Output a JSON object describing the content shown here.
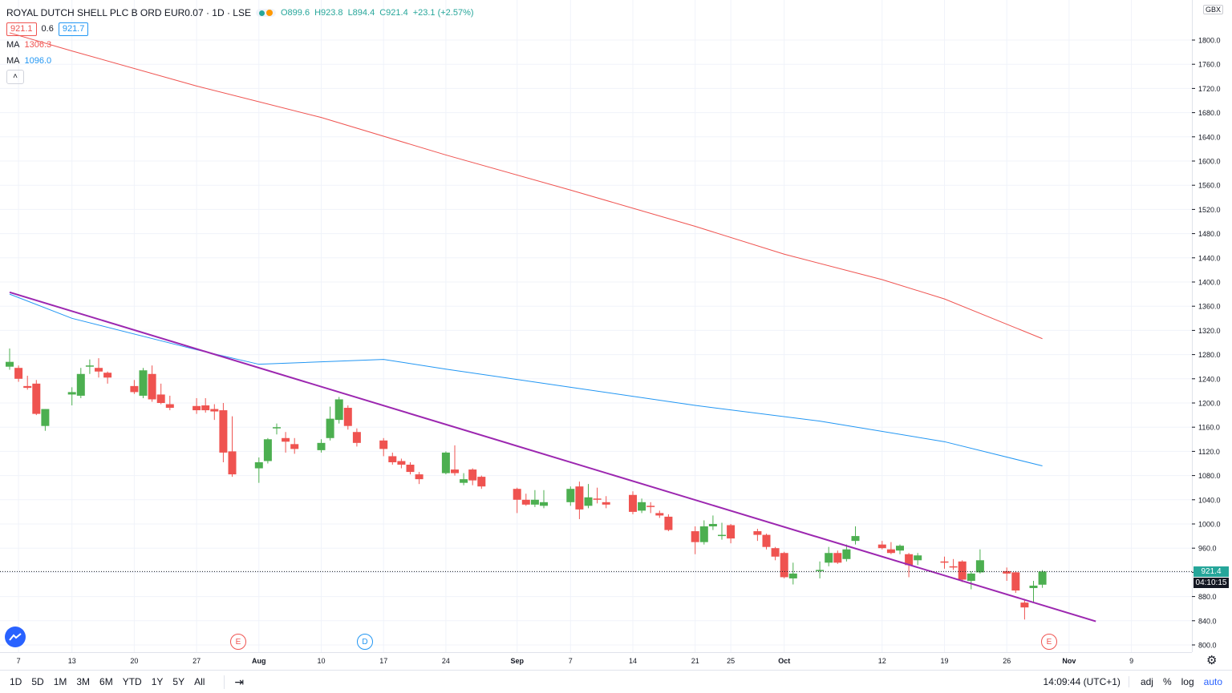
{
  "header": {
    "symbol": "ROYAL DUTCH SHELL PLC B ORD EUR0.07 · 1D · LSE",
    "open": "O899.6",
    "high": "H923.8",
    "low": "L894.4",
    "close": "C921.4",
    "change": "+23.1 (+2.57%)"
  },
  "bid_ask": {
    "bid": "921.1",
    "spread": "0.6",
    "ask": "921.7"
  },
  "indicators": [
    {
      "label": "MA",
      "value": "1306.3",
      "color": "#ef5350"
    },
    {
      "label": "MA",
      "value": "1096.0",
      "color": "#2196f3"
    }
  ],
  "currency": "GBX",
  "price_ticks": [
    "1800.0",
    "1760.0",
    "1720.0",
    "1680.0",
    "1640.0",
    "1600.0",
    "1560.0",
    "1520.0",
    "1480.0",
    "1440.0",
    "1400.0",
    "1360.0",
    "1320.0",
    "1280.0",
    "1240.0",
    "1200.0",
    "1160.0",
    "1120.0",
    "1080.0",
    "1040.0",
    "1000.0",
    "960.0",
    "920.0",
    "880.0",
    "840.0",
    "800.0"
  ],
  "time_ticks": [
    "7",
    "13",
    "20",
    "27",
    "Aug",
    "10",
    "17",
    "24",
    "Sep",
    "7",
    "14",
    "21",
    "25",
    "Oct",
    "12",
    "19",
    "26",
    "Nov",
    "9"
  ],
  "last_price_label": "921.4",
  "countdown_label": "04:10:15",
  "event_badges": [
    "E",
    "D",
    "E"
  ],
  "ranges": [
    "1D",
    "5D",
    "1M",
    "3M",
    "6M",
    "YTD",
    "1Y",
    "5Y",
    "All"
  ],
  "clock": "14:09:44 (UTC+1)",
  "toggles": [
    "adj",
    "%",
    "log",
    "auto"
  ],
  "colors": {
    "up": "#26a69a",
    "up_fill": "#4caf50",
    "down": "#ef5350",
    "ma1": "#ef5350",
    "ma2": "#2196f3",
    "trend": "#9c27b0"
  },
  "chart_data": {
    "type": "candlestick",
    "ylim": [
      790,
      1830
    ],
    "x_start": "2020-07-06",
    "candles": [
      {
        "date": "2020-07-06",
        "o": 1260,
        "h": 1290,
        "l": 1255,
        "c": 1268
      },
      {
        "date": "2020-07-07",
        "o": 1258,
        "h": 1262,
        "l": 1235,
        "c": 1240
      },
      {
        "date": "2020-07-08",
        "o": 1228,
        "h": 1245,
        "l": 1222,
        "c": 1225
      },
      {
        "date": "2020-07-09",
        "o": 1232,
        "h": 1238,
        "l": 1180,
        "c": 1182
      },
      {
        "date": "2020-07-10",
        "o": 1162,
        "h": 1190,
        "l": 1154,
        "c": 1190
      },
      {
        "date": "2020-07-13",
        "o": 1214,
        "h": 1226,
        "l": 1196,
        "c": 1218
      },
      {
        "date": "2020-07-14",
        "o": 1212,
        "h": 1258,
        "l": 1208,
        "c": 1248
      },
      {
        "date": "2020-07-15",
        "o": 1260,
        "h": 1272,
        "l": 1248,
        "c": 1262
      },
      {
        "date": "2020-07-16",
        "o": 1258,
        "h": 1274,
        "l": 1242,
        "c": 1252
      },
      {
        "date": "2020-07-17",
        "o": 1250,
        "h": 1252,
        "l": 1232,
        "c": 1242
      },
      {
        "date": "2020-07-20",
        "o": 1228,
        "h": 1238,
        "l": 1215,
        "c": 1218
      },
      {
        "date": "2020-07-21",
        "o": 1212,
        "h": 1258,
        "l": 1208,
        "c": 1254
      },
      {
        "date": "2020-07-22",
        "o": 1248,
        "h": 1262,
        "l": 1202,
        "c": 1206
      },
      {
        "date": "2020-07-23",
        "o": 1214,
        "h": 1232,
        "l": 1198,
        "c": 1200
      },
      {
        "date": "2020-07-24",
        "o": 1198,
        "h": 1212,
        "l": 1188,
        "c": 1192
      },
      {
        "date": "2020-07-27",
        "o": 1195,
        "h": 1208,
        "l": 1182,
        "c": 1188
      },
      {
        "date": "2020-07-28",
        "o": 1196,
        "h": 1208,
        "l": 1184,
        "c": 1188
      },
      {
        "date": "2020-07-29",
        "o": 1190,
        "h": 1198,
        "l": 1172,
        "c": 1186
      },
      {
        "date": "2020-07-30",
        "o": 1188,
        "h": 1200,
        "l": 1102,
        "c": 1118
      },
      {
        "date": "2020-07-31",
        "o": 1120,
        "h": 1178,
        "l": 1078,
        "c": 1082
      },
      {
        "date": "2020-08-03",
        "o": 1092,
        "h": 1110,
        "l": 1068,
        "c": 1102
      },
      {
        "date": "2020-08-04",
        "o": 1104,
        "h": 1142,
        "l": 1100,
        "c": 1140
      },
      {
        "date": "2020-08-05",
        "o": 1158,
        "h": 1166,
        "l": 1148,
        "c": 1160
      },
      {
        "date": "2020-08-06",
        "o": 1142,
        "h": 1152,
        "l": 1118,
        "c": 1136
      },
      {
        "date": "2020-08-07",
        "o": 1132,
        "h": 1142,
        "l": 1116,
        "c": 1124
      },
      {
        "date": "2020-08-10",
        "o": 1122,
        "h": 1140,
        "l": 1118,
        "c": 1134
      },
      {
        "date": "2020-08-11",
        "o": 1142,
        "h": 1194,
        "l": 1138,
        "c": 1174
      },
      {
        "date": "2020-08-12",
        "o": 1172,
        "h": 1210,
        "l": 1166,
        "c": 1206
      },
      {
        "date": "2020-08-13",
        "o": 1192,
        "h": 1196,
        "l": 1156,
        "c": 1162
      },
      {
        "date": "2020-08-14",
        "o": 1152,
        "h": 1158,
        "l": 1128,
        "c": 1134
      },
      {
        "date": "2020-08-17",
        "o": 1138,
        "h": 1142,
        "l": 1112,
        "c": 1124
      },
      {
        "date": "2020-08-18",
        "o": 1112,
        "h": 1118,
        "l": 1098,
        "c": 1102
      },
      {
        "date": "2020-08-19",
        "o": 1104,
        "h": 1108,
        "l": 1092,
        "c": 1098
      },
      {
        "date": "2020-08-20",
        "o": 1098,
        "h": 1102,
        "l": 1082,
        "c": 1086
      },
      {
        "date": "2020-08-21",
        "o": 1082,
        "h": 1086,
        "l": 1066,
        "c": 1074
      },
      {
        "date": "2020-08-24",
        "o": 1084,
        "h": 1120,
        "l": 1082,
        "c": 1118
      },
      {
        "date": "2020-08-25",
        "o": 1090,
        "h": 1130,
        "l": 1080,
        "c": 1084
      },
      {
        "date": "2020-08-26",
        "o": 1068,
        "h": 1084,
        "l": 1064,
        "c": 1074
      },
      {
        "date": "2020-08-27",
        "o": 1090,
        "h": 1092,
        "l": 1064,
        "c": 1072
      },
      {
        "date": "2020-08-28",
        "o": 1078,
        "h": 1080,
        "l": 1058,
        "c": 1062
      },
      {
        "date": "2020-09-01",
        "o": 1058,
        "h": 1060,
        "l": 1018,
        "c": 1040
      },
      {
        "date": "2020-09-02",
        "o": 1040,
        "h": 1050,
        "l": 1030,
        "c": 1032
      },
      {
        "date": "2020-09-03",
        "o": 1032,
        "h": 1056,
        "l": 1028,
        "c": 1040
      },
      {
        "date": "2020-09-04",
        "o": 1030,
        "h": 1056,
        "l": 1026,
        "c": 1036
      },
      {
        "date": "2020-09-07",
        "o": 1036,
        "h": 1062,
        "l": 1030,
        "c": 1058
      },
      {
        "date": "2020-09-08",
        "o": 1062,
        "h": 1070,
        "l": 1008,
        "c": 1024
      },
      {
        "date": "2020-09-09",
        "o": 1030,
        "h": 1066,
        "l": 1026,
        "c": 1044
      },
      {
        "date": "2020-09-10",
        "o": 1042,
        "h": 1060,
        "l": 1034,
        "c": 1040
      },
      {
        "date": "2020-09-11",
        "o": 1036,
        "h": 1046,
        "l": 1026,
        "c": 1032
      },
      {
        "date": "2020-09-14",
        "o": 1048,
        "h": 1054,
        "l": 1016,
        "c": 1020
      },
      {
        "date": "2020-09-15",
        "o": 1022,
        "h": 1042,
        "l": 1018,
        "c": 1036
      },
      {
        "date": "2020-09-16",
        "o": 1030,
        "h": 1036,
        "l": 1018,
        "c": 1028
      },
      {
        "date": "2020-09-17",
        "o": 1018,
        "h": 1022,
        "l": 1010,
        "c": 1014
      },
      {
        "date": "2020-09-18",
        "o": 1012,
        "h": 1016,
        "l": 988,
        "c": 990
      },
      {
        "date": "2020-09-21",
        "o": 988,
        "h": 996,
        "l": 950,
        "c": 970
      },
      {
        "date": "2020-09-22",
        "o": 970,
        "h": 1006,
        "l": 966,
        "c": 996
      },
      {
        "date": "2020-09-23",
        "o": 996,
        "h": 1014,
        "l": 990,
        "c": 1000
      },
      {
        "date": "2020-09-24",
        "o": 980,
        "h": 1002,
        "l": 974,
        "c": 982
      },
      {
        "date": "2020-09-25",
        "o": 998,
        "h": 1000,
        "l": 968,
        "c": 976
      },
      {
        "date": "2020-09-28",
        "o": 988,
        "h": 992,
        "l": 972,
        "c": 982
      },
      {
        "date": "2020-09-29",
        "o": 982,
        "h": 984,
        "l": 958,
        "c": 962
      },
      {
        "date": "2020-09-30",
        "o": 960,
        "h": 962,
        "l": 940,
        "c": 946
      },
      {
        "date": "2020-10-01",
        "o": 952,
        "h": 954,
        "l": 910,
        "c": 912
      },
      {
        "date": "2020-10-02",
        "o": 910,
        "h": 936,
        "l": 900,
        "c": 918
      },
      {
        "date": "2020-10-05",
        "o": 922,
        "h": 938,
        "l": 910,
        "c": 924
      },
      {
        "date": "2020-10-06",
        "o": 936,
        "h": 962,
        "l": 930,
        "c": 952
      },
      {
        "date": "2020-10-07",
        "o": 952,
        "h": 956,
        "l": 934,
        "c": 936
      },
      {
        "date": "2020-10-08",
        "o": 942,
        "h": 966,
        "l": 938,
        "c": 958
      },
      {
        "date": "2020-10-09",
        "o": 972,
        "h": 996,
        "l": 966,
        "c": 980
      },
      {
        "date": "2020-10-12",
        "o": 966,
        "h": 972,
        "l": 958,
        "c": 960
      },
      {
        "date": "2020-10-13",
        "o": 958,
        "h": 970,
        "l": 950,
        "c": 952
      },
      {
        "date": "2020-10-14",
        "o": 956,
        "h": 966,
        "l": 950,
        "c": 964
      },
      {
        "date": "2020-10-15",
        "o": 950,
        "h": 952,
        "l": 912,
        "c": 932
      },
      {
        "date": "2020-10-16",
        "o": 940,
        "h": 952,
        "l": 932,
        "c": 948
      },
      {
        "date": "2020-10-19",
        "o": 938,
        "h": 946,
        "l": 926,
        "c": 936
      },
      {
        "date": "2020-10-20",
        "o": 930,
        "h": 942,
        "l": 924,
        "c": 928
      },
      {
        "date": "2020-10-21",
        "o": 938,
        "h": 940,
        "l": 904,
        "c": 908
      },
      {
        "date": "2020-10-22",
        "o": 906,
        "h": 922,
        "l": 892,
        "c": 918
      },
      {
        "date": "2020-10-23",
        "o": 920,
        "h": 958,
        "l": 918,
        "c": 940
      },
      {
        "date": "2020-10-26",
        "o": 922,
        "h": 928,
        "l": 906,
        "c": 918
      },
      {
        "date": "2020-10-27",
        "o": 920,
        "h": 922,
        "l": 886,
        "c": 890
      },
      {
        "date": "2020-10-28",
        "o": 870,
        "h": 876,
        "l": 842,
        "c": 862
      },
      {
        "date": "2020-10-29",
        "o": 894,
        "h": 906,
        "l": 870,
        "c": 898
      },
      {
        "date": "2020-10-30",
        "o": 899.6,
        "h": 923.8,
        "l": 894.4,
        "c": 921.4
      }
    ],
    "ma_long": [
      {
        "date": "2020-07-06",
        "v": 1812
      },
      {
        "date": "2020-07-13",
        "v": 1782
      },
      {
        "date": "2020-07-27",
        "v": 1724
      },
      {
        "date": "2020-08-10",
        "v": 1672
      },
      {
        "date": "2020-08-24",
        "v": 1610
      },
      {
        "date": "2020-09-07",
        "v": 1552
      },
      {
        "date": "2020-09-21",
        "v": 1492
      },
      {
        "date": "2020-10-01",
        "v": 1446
      },
      {
        "date": "2020-10-12",
        "v": 1404
      },
      {
        "date": "2020-10-19",
        "v": 1372
      },
      {
        "date": "2020-10-30",
        "v": 1306.3
      }
    ],
    "ma_short": [
      {
        "date": "2020-07-06",
        "v": 1380
      },
      {
        "date": "2020-07-13",
        "v": 1340
      },
      {
        "date": "2020-07-27",
        "v": 1288
      },
      {
        "date": "2020-08-03",
        "v": 1264
      },
      {
        "date": "2020-08-17",
        "v": 1272
      },
      {
        "date": "2020-08-24",
        "v": 1256
      },
      {
        "date": "2020-09-07",
        "v": 1226
      },
      {
        "date": "2020-09-21",
        "v": 1196
      },
      {
        "date": "2020-10-05",
        "v": 1170
      },
      {
        "date": "2020-10-19",
        "v": 1136
      },
      {
        "date": "2020-10-30",
        "v": 1096.0
      }
    ],
    "trendline": [
      {
        "date": "2020-07-06",
        "v": 1383
      },
      {
        "date": "2020-11-05",
        "v": 839
      }
    ]
  }
}
